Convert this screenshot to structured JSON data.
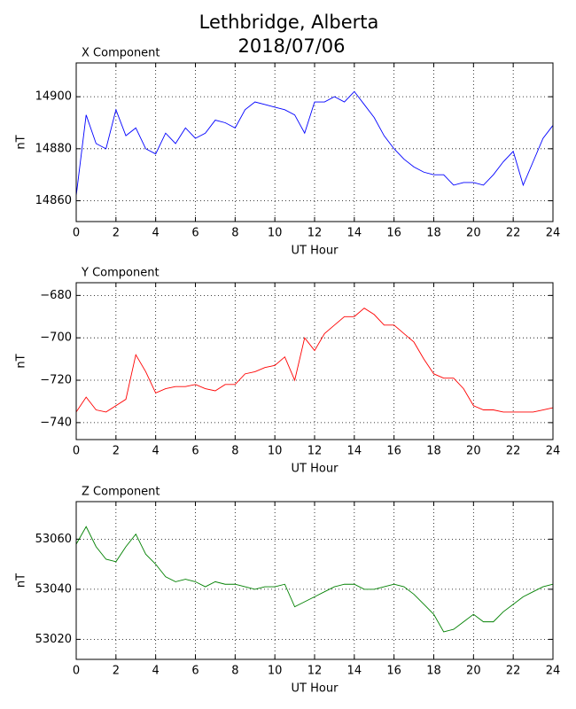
{
  "title": "Lethbridge, Alberta",
  "subtitle": "2018/07/06",
  "chart_data": [
    {
      "type": "line",
      "title": "X Component",
      "xlabel": "UT Hour",
      "ylabel": "nT",
      "color": "#0000ff",
      "grid": true,
      "xlim": [
        0,
        24
      ],
      "xticks": [
        0,
        2,
        4,
        6,
        8,
        10,
        12,
        14,
        16,
        18,
        20,
        22,
        24
      ],
      "ylim": [
        14852,
        14913
      ],
      "yticks": [
        14860,
        14880,
        14900
      ],
      "x": [
        0,
        0.5,
        1,
        1.5,
        2,
        2.5,
        3,
        3.5,
        4,
        4.5,
        5,
        5.5,
        6,
        6.5,
        7,
        7.5,
        8,
        8.5,
        9,
        9.5,
        10,
        10.5,
        11,
        11.5,
        12,
        12.5,
        13,
        13.5,
        14,
        14.5,
        15,
        15.5,
        16,
        16.5,
        17,
        17.5,
        18,
        18.5,
        19,
        19.5,
        20,
        20.5,
        21,
        21.5,
        22,
        22.5,
        23,
        23.5,
        24
      ],
      "values": [
        14862,
        14893,
        14882,
        14880,
        14895,
        14885,
        14888,
        14880,
        14878,
        14886,
        14882,
        14888,
        14884,
        14886,
        14891,
        14890,
        14888,
        14895,
        14898,
        14897,
        14896,
        14895,
        14893,
        14886,
        14898,
        14898,
        14900,
        14898,
        14902,
        14897,
        14892,
        14885,
        14880,
        14876,
        14873,
        14871,
        14870,
        14870,
        14866,
        14867,
        14867,
        14866,
        14870,
        14875,
        14879,
        14866,
        14875,
        14884,
        14889
      ]
    },
    {
      "type": "line",
      "title": "Y Component",
      "xlabel": "UT Hour",
      "ylabel": "nT",
      "color": "#ff0000",
      "grid": true,
      "xlim": [
        0,
        24
      ],
      "xticks": [
        0,
        2,
        4,
        6,
        8,
        10,
        12,
        14,
        16,
        18,
        20,
        22,
        24
      ],
      "ylim": [
        -748,
        -674
      ],
      "yticks": [
        {
          "value": -740,
          "label": "−740"
        },
        {
          "value": -720,
          "label": "−720"
        },
        {
          "value": -700,
          "label": "−700"
        },
        {
          "value": -680,
          "label": "−680"
        }
      ],
      "x": [
        0,
        0.5,
        1,
        1.5,
        2,
        2.5,
        3,
        3.5,
        4,
        4.5,
        5,
        5.5,
        6,
        6.5,
        7,
        7.5,
        8,
        8.5,
        9,
        9.5,
        10,
        10.5,
        11,
        11.5,
        12,
        12.5,
        13,
        13.5,
        14,
        14.5,
        15,
        15.5,
        16,
        16.5,
        17,
        17.5,
        18,
        18.5,
        19,
        19.5,
        20,
        20.5,
        21,
        21.5,
        22,
        22.5,
        23,
        23.5,
        24
      ],
      "values": [
        -735,
        -728,
        -734,
        -735,
        -732,
        -729,
        -708,
        -716,
        -726,
        -724,
        -723,
        -723,
        -722,
        -724,
        -725,
        -722,
        -722,
        -717,
        -716,
        -714,
        -713,
        -709,
        -720,
        -700,
        -706,
        -698,
        -694,
        -690,
        -690,
        -686,
        -689,
        -694,
        -694,
        -698,
        -702,
        -710,
        -717,
        -719,
        -719,
        -724,
        -732,
        -734,
        -734,
        -735,
        -735,
        -735,
        -735,
        -734,
        -733
      ]
    },
    {
      "type": "line",
      "title": "Z Component",
      "xlabel": "UT Hour",
      "ylabel": "nT",
      "color": "#008000",
      "grid": true,
      "xlim": [
        0,
        24
      ],
      "xticks": [
        0,
        2,
        4,
        6,
        8,
        10,
        12,
        14,
        16,
        18,
        20,
        22,
        24
      ],
      "ylim": [
        53012,
        53075
      ],
      "yticks": [
        53020,
        53040,
        53060
      ],
      "x": [
        0,
        0.5,
        1,
        1.5,
        2,
        2.5,
        3,
        3.5,
        4,
        4.5,
        5,
        5.5,
        6,
        6.5,
        7,
        7.5,
        8,
        8.5,
        9,
        9.5,
        10,
        10.5,
        11,
        11.5,
        12,
        12.5,
        13,
        13.5,
        14,
        14.5,
        15,
        15.5,
        16,
        16.5,
        17,
        17.5,
        18,
        18.5,
        19,
        19.5,
        20,
        20.5,
        21,
        21.5,
        22,
        22.5,
        23,
        23.5,
        24
      ],
      "values": [
        53058,
        53065,
        53057,
        53052,
        53051,
        53057,
        53062,
        53054,
        53050,
        53045,
        53043,
        53044,
        53043,
        53041,
        53043,
        53042,
        53042,
        53041,
        53040,
        53041,
        53041,
        53042,
        53033,
        53035,
        53037,
        53039,
        53041,
        53042,
        53042,
        53040,
        53040,
        53041,
        53042,
        53041,
        53038,
        53034,
        53030,
        53023,
        53024,
        53027,
        53030,
        53027,
        53027,
        53031,
        53034,
        53037,
        53039,
        53041,
        53042
      ]
    }
  ]
}
